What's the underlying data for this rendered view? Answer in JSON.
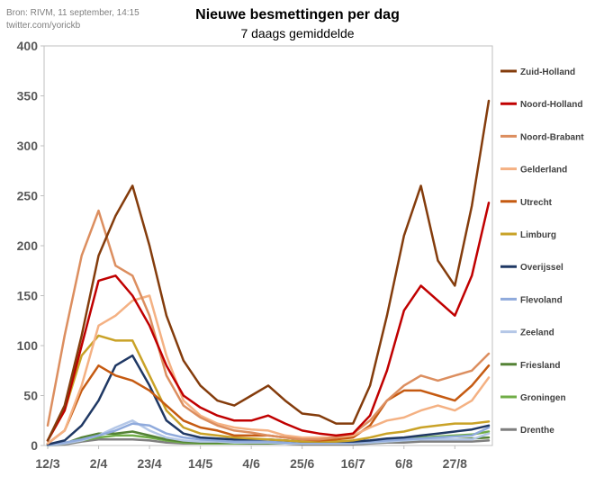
{
  "source": {
    "line1": "Bron: RIVM, 11 september,  14:15",
    "line2": "twitter.com/yorickb"
  },
  "chart_data": {
    "type": "line",
    "title": "Nieuwe besmettingen per dag",
    "subtitle": "7 daags gemiddelde",
    "xlabel": "",
    "ylabel": "",
    "ylim": [
      0,
      400
    ],
    "yticks": [
      0,
      50,
      100,
      150,
      200,
      250,
      300,
      350,
      400
    ],
    "grid": false,
    "legend_position": "right",
    "x": [
      "12/3",
      "19/3",
      "26/3",
      "2/4",
      "9/4",
      "16/4",
      "23/4",
      "30/4",
      "7/5",
      "14/5",
      "21/5",
      "28/5",
      "4/6",
      "11/6",
      "18/6",
      "25/6",
      "2/7",
      "9/7",
      "16/7",
      "23/7",
      "30/7",
      "6/8",
      "13/8",
      "20/8",
      "27/8",
      "3/9",
      "10/9"
    ],
    "xtick_labels": [
      "12/3",
      "2/4",
      "23/4",
      "14/5",
      "4/6",
      "25/6",
      "16/7",
      "6/8",
      "27/8"
    ],
    "series": [
      {
        "name": "Zuid-Holland",
        "color": "#843c0c",
        "values": [
          5,
          40,
          110,
          190,
          230,
          260,
          200,
          130,
          85,
          60,
          45,
          40,
          50,
          60,
          45,
          32,
          30,
          22,
          22,
          60,
          130,
          210,
          260,
          185,
          160,
          240,
          345
        ]
      },
      {
        "name": "Noord-Holland",
        "color": "#c00000",
        "values": [
          5,
          35,
          100,
          165,
          170,
          150,
          120,
          80,
          50,
          38,
          30,
          25,
          25,
          30,
          22,
          15,
          12,
          10,
          12,
          30,
          75,
          135,
          160,
          145,
          130,
          170,
          243
        ]
      },
      {
        "name": "Noord-Brabant",
        "color": "#dc8e5f",
        "values": [
          20,
          110,
          190,
          235,
          180,
          170,
          130,
          70,
          40,
          28,
          20,
          15,
          13,
          10,
          8,
          6,
          6,
          8,
          12,
          25,
          45,
          60,
          70,
          65,
          70,
          75,
          92
        ]
      },
      {
        "name": "Gelderland",
        "color": "#f4b183",
        "values": [
          2,
          15,
          60,
          120,
          130,
          145,
          150,
          90,
          45,
          30,
          22,
          18,
          16,
          15,
          10,
          8,
          8,
          8,
          10,
          18,
          25,
          28,
          35,
          40,
          35,
          45,
          68
        ]
      },
      {
        "name": "Utrecht",
        "color": "#c55a11",
        "values": [
          2,
          15,
          55,
          80,
          70,
          65,
          55,
          40,
          25,
          18,
          15,
          10,
          10,
          10,
          8,
          6,
          5,
          6,
          8,
          20,
          45,
          55,
          55,
          50,
          45,
          60,
          80
        ]
      },
      {
        "name": "Limburg",
        "color": "#c9a227",
        "values": [
          5,
          35,
          90,
          110,
          105,
          105,
          70,
          35,
          18,
          12,
          10,
          8,
          7,
          6,
          5,
          4,
          4,
          4,
          5,
          8,
          12,
          14,
          18,
          20,
          22,
          22,
          24
        ]
      },
      {
        "name": "Overijssel",
        "color": "#1f3864",
        "values": [
          1,
          5,
          20,
          45,
          80,
          90,
          60,
          25,
          12,
          8,
          7,
          6,
          6,
          6,
          5,
          4,
          4,
          4,
          4,
          5,
          7,
          8,
          10,
          12,
          14,
          16,
          20
        ]
      },
      {
        "name": "Flevoland",
        "color": "#8faadc",
        "values": [
          1,
          3,
          6,
          10,
          15,
          22,
          20,
          12,
          8,
          6,
          5,
          4,
          4,
          4,
          3,
          3,
          3,
          3,
          3,
          4,
          5,
          6,
          7,
          8,
          9,
          10,
          18
        ]
      },
      {
        "name": "Zeeland",
        "color": "#b4c7e7",
        "values": [
          0,
          2,
          5,
          10,
          18,
          25,
          15,
          8,
          5,
          4,
          4,
          3,
          3,
          3,
          2,
          2,
          2,
          2,
          2,
          3,
          4,
          5,
          6,
          6,
          6,
          6,
          12
        ]
      },
      {
        "name": "Friesland",
        "color": "#548235",
        "values": [
          0,
          2,
          8,
          12,
          12,
          14,
          10,
          6,
          4,
          3,
          3,
          3,
          2,
          2,
          2,
          2,
          2,
          2,
          2,
          3,
          4,
          5,
          6,
          6,
          6,
          7,
          8
        ]
      },
      {
        "name": "Groningen",
        "color": "#70ad47",
        "values": [
          0,
          2,
          5,
          8,
          10,
          10,
          8,
          5,
          3,
          2,
          2,
          2,
          2,
          2,
          2,
          2,
          2,
          2,
          2,
          3,
          4,
          6,
          8,
          9,
          10,
          11,
          14
        ]
      },
      {
        "name": "Drenthe",
        "color": "#7f7f7f",
        "values": [
          0,
          1,
          4,
          6,
          6,
          6,
          5,
          3,
          2,
          2,
          2,
          2,
          2,
          2,
          2,
          1,
          1,
          1,
          1,
          2,
          3,
          3,
          4,
          4,
          4,
          4,
          5
        ]
      }
    ]
  }
}
